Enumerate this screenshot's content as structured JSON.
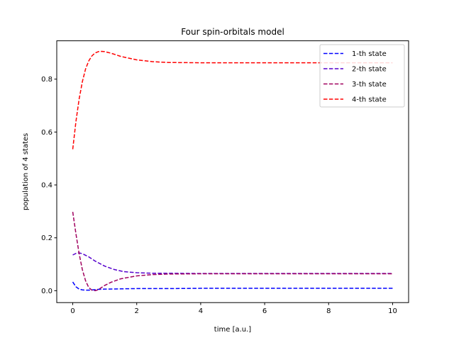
{
  "chart_data": {
    "type": "line",
    "title": "Four spin-orbitals model",
    "xlabel": "time [a.u.]",
    "ylabel": "population of 4 states",
    "xlim": [
      -0.5,
      10.5
    ],
    "ylim": [
      -0.045,
      0.945
    ],
    "xticks": [
      0,
      2,
      4,
      6,
      8,
      10
    ],
    "yticks": [
      0.0,
      0.2,
      0.4,
      0.6,
      0.8
    ],
    "xtick_labels": [
      "0",
      "2",
      "4",
      "6",
      "8",
      "10"
    ],
    "ytick_labels": [
      "0.0",
      "0.2",
      "0.4",
      "0.6",
      "0.8"
    ],
    "grid": false,
    "legend_position": "top-right",
    "line_style": "dashed",
    "series": [
      {
        "name": "1-th state",
        "color": "#0000ff",
        "x": [
          0,
          0.1,
          0.2,
          0.3,
          0.4,
          0.5,
          0.6,
          0.8,
          1.0,
          1.5,
          2,
          3,
          4,
          6,
          8,
          10
        ],
        "y": [
          0.033,
          0.015,
          0.006,
          0.003,
          0.002,
          0.002,
          0.003,
          0.005,
          0.006,
          0.007,
          0.008,
          0.008,
          0.009,
          0.009,
          0.009,
          0.009
        ]
      },
      {
        "name": "2-th state",
        "color": "#5500cc",
        "x": [
          0,
          0.1,
          0.2,
          0.3,
          0.5,
          0.7,
          1.0,
          1.3,
          1.6,
          2,
          2.5,
          3,
          4,
          6,
          8,
          10
        ],
        "y": [
          0.135,
          0.141,
          0.143,
          0.14,
          0.128,
          0.112,
          0.093,
          0.08,
          0.072,
          0.068,
          0.066,
          0.066,
          0.065,
          0.065,
          0.065,
          0.065
        ]
      },
      {
        "name": "3-th state",
        "color": "#a0005f",
        "x": [
          0,
          0.1,
          0.2,
          0.3,
          0.4,
          0.5,
          0.6,
          0.7,
          0.8,
          0.9,
          1.0,
          1.2,
          1.5,
          2,
          2.5,
          3,
          4,
          6,
          8,
          10
        ],
        "y": [
          0.298,
          0.215,
          0.14,
          0.08,
          0.038,
          0.012,
          0.002,
          0.0,
          0.004,
          0.012,
          0.02,
          0.032,
          0.045,
          0.056,
          0.061,
          0.063,
          0.064,
          0.064,
          0.064,
          0.064
        ]
      },
      {
        "name": "4-th state",
        "color": "#ff0000",
        "x": [
          0,
          0.1,
          0.2,
          0.3,
          0.4,
          0.5,
          0.6,
          0.7,
          0.8,
          0.9,
          1.0,
          1.2,
          1.5,
          2,
          2.5,
          3,
          4,
          6,
          8,
          10
        ],
        "y": [
          0.535,
          0.64,
          0.725,
          0.79,
          0.838,
          0.869,
          0.888,
          0.899,
          0.904,
          0.905,
          0.904,
          0.898,
          0.886,
          0.873,
          0.866,
          0.863,
          0.862,
          0.862,
          0.862,
          0.862
        ]
      }
    ]
  }
}
